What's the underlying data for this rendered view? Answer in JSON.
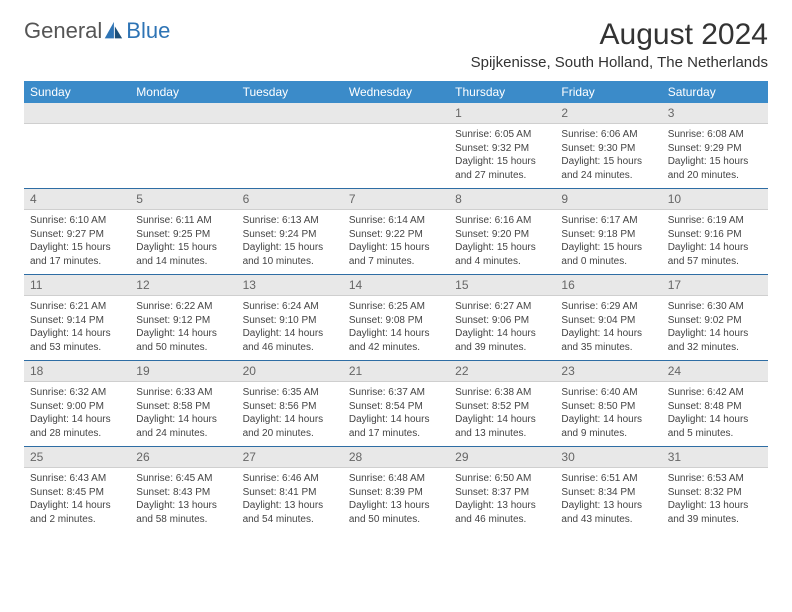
{
  "brand": {
    "part1": "General",
    "part2": "Blue"
  },
  "title": "August 2024",
  "location": "Spijkenisse, South Holland, The Netherlands",
  "colors": {
    "header_bg": "#3b8bc9",
    "rule": "#2e6da4",
    "daynum_bg": "#e8e8e8",
    "text": "#444444",
    "brand_blue": "#2e74b5"
  },
  "day_names": [
    "Sunday",
    "Monday",
    "Tuesday",
    "Wednesday",
    "Thursday",
    "Friday",
    "Saturday"
  ],
  "weeks": [
    {
      "nums": [
        "",
        "",
        "",
        "",
        "1",
        "2",
        "3"
      ],
      "cells": [
        {},
        {},
        {},
        {},
        {
          "sunrise": "Sunrise: 6:05 AM",
          "sunset": "Sunset: 9:32 PM",
          "day1": "Daylight: 15 hours",
          "day2": "and 27 minutes."
        },
        {
          "sunrise": "Sunrise: 6:06 AM",
          "sunset": "Sunset: 9:30 PM",
          "day1": "Daylight: 15 hours",
          "day2": "and 24 minutes."
        },
        {
          "sunrise": "Sunrise: 6:08 AM",
          "sunset": "Sunset: 9:29 PM",
          "day1": "Daylight: 15 hours",
          "day2": "and 20 minutes."
        }
      ]
    },
    {
      "nums": [
        "4",
        "5",
        "6",
        "7",
        "8",
        "9",
        "10"
      ],
      "cells": [
        {
          "sunrise": "Sunrise: 6:10 AM",
          "sunset": "Sunset: 9:27 PM",
          "day1": "Daylight: 15 hours",
          "day2": "and 17 minutes."
        },
        {
          "sunrise": "Sunrise: 6:11 AM",
          "sunset": "Sunset: 9:25 PM",
          "day1": "Daylight: 15 hours",
          "day2": "and 14 minutes."
        },
        {
          "sunrise": "Sunrise: 6:13 AM",
          "sunset": "Sunset: 9:24 PM",
          "day1": "Daylight: 15 hours",
          "day2": "and 10 minutes."
        },
        {
          "sunrise": "Sunrise: 6:14 AM",
          "sunset": "Sunset: 9:22 PM",
          "day1": "Daylight: 15 hours",
          "day2": "and 7 minutes."
        },
        {
          "sunrise": "Sunrise: 6:16 AM",
          "sunset": "Sunset: 9:20 PM",
          "day1": "Daylight: 15 hours",
          "day2": "and 4 minutes."
        },
        {
          "sunrise": "Sunrise: 6:17 AM",
          "sunset": "Sunset: 9:18 PM",
          "day1": "Daylight: 15 hours",
          "day2": "and 0 minutes."
        },
        {
          "sunrise": "Sunrise: 6:19 AM",
          "sunset": "Sunset: 9:16 PM",
          "day1": "Daylight: 14 hours",
          "day2": "and 57 minutes."
        }
      ]
    },
    {
      "nums": [
        "11",
        "12",
        "13",
        "14",
        "15",
        "16",
        "17"
      ],
      "cells": [
        {
          "sunrise": "Sunrise: 6:21 AM",
          "sunset": "Sunset: 9:14 PM",
          "day1": "Daylight: 14 hours",
          "day2": "and 53 minutes."
        },
        {
          "sunrise": "Sunrise: 6:22 AM",
          "sunset": "Sunset: 9:12 PM",
          "day1": "Daylight: 14 hours",
          "day2": "and 50 minutes."
        },
        {
          "sunrise": "Sunrise: 6:24 AM",
          "sunset": "Sunset: 9:10 PM",
          "day1": "Daylight: 14 hours",
          "day2": "and 46 minutes."
        },
        {
          "sunrise": "Sunrise: 6:25 AM",
          "sunset": "Sunset: 9:08 PM",
          "day1": "Daylight: 14 hours",
          "day2": "and 42 minutes."
        },
        {
          "sunrise": "Sunrise: 6:27 AM",
          "sunset": "Sunset: 9:06 PM",
          "day1": "Daylight: 14 hours",
          "day2": "and 39 minutes."
        },
        {
          "sunrise": "Sunrise: 6:29 AM",
          "sunset": "Sunset: 9:04 PM",
          "day1": "Daylight: 14 hours",
          "day2": "and 35 minutes."
        },
        {
          "sunrise": "Sunrise: 6:30 AM",
          "sunset": "Sunset: 9:02 PM",
          "day1": "Daylight: 14 hours",
          "day2": "and 32 minutes."
        }
      ]
    },
    {
      "nums": [
        "18",
        "19",
        "20",
        "21",
        "22",
        "23",
        "24"
      ],
      "cells": [
        {
          "sunrise": "Sunrise: 6:32 AM",
          "sunset": "Sunset: 9:00 PM",
          "day1": "Daylight: 14 hours",
          "day2": "and 28 minutes."
        },
        {
          "sunrise": "Sunrise: 6:33 AM",
          "sunset": "Sunset: 8:58 PM",
          "day1": "Daylight: 14 hours",
          "day2": "and 24 minutes."
        },
        {
          "sunrise": "Sunrise: 6:35 AM",
          "sunset": "Sunset: 8:56 PM",
          "day1": "Daylight: 14 hours",
          "day2": "and 20 minutes."
        },
        {
          "sunrise": "Sunrise: 6:37 AM",
          "sunset": "Sunset: 8:54 PM",
          "day1": "Daylight: 14 hours",
          "day2": "and 17 minutes."
        },
        {
          "sunrise": "Sunrise: 6:38 AM",
          "sunset": "Sunset: 8:52 PM",
          "day1": "Daylight: 14 hours",
          "day2": "and 13 minutes."
        },
        {
          "sunrise": "Sunrise: 6:40 AM",
          "sunset": "Sunset: 8:50 PM",
          "day1": "Daylight: 14 hours",
          "day2": "and 9 minutes."
        },
        {
          "sunrise": "Sunrise: 6:42 AM",
          "sunset": "Sunset: 8:48 PM",
          "day1": "Daylight: 14 hours",
          "day2": "and 5 minutes."
        }
      ]
    },
    {
      "nums": [
        "25",
        "26",
        "27",
        "28",
        "29",
        "30",
        "31"
      ],
      "cells": [
        {
          "sunrise": "Sunrise: 6:43 AM",
          "sunset": "Sunset: 8:45 PM",
          "day1": "Daylight: 14 hours",
          "day2": "and 2 minutes."
        },
        {
          "sunrise": "Sunrise: 6:45 AM",
          "sunset": "Sunset: 8:43 PM",
          "day1": "Daylight: 13 hours",
          "day2": "and 58 minutes."
        },
        {
          "sunrise": "Sunrise: 6:46 AM",
          "sunset": "Sunset: 8:41 PM",
          "day1": "Daylight: 13 hours",
          "day2": "and 54 minutes."
        },
        {
          "sunrise": "Sunrise: 6:48 AM",
          "sunset": "Sunset: 8:39 PM",
          "day1": "Daylight: 13 hours",
          "day2": "and 50 minutes."
        },
        {
          "sunrise": "Sunrise: 6:50 AM",
          "sunset": "Sunset: 8:37 PM",
          "day1": "Daylight: 13 hours",
          "day2": "and 46 minutes."
        },
        {
          "sunrise": "Sunrise: 6:51 AM",
          "sunset": "Sunset: 8:34 PM",
          "day1": "Daylight: 13 hours",
          "day2": "and 43 minutes."
        },
        {
          "sunrise": "Sunrise: 6:53 AM",
          "sunset": "Sunset: 8:32 PM",
          "day1": "Daylight: 13 hours",
          "day2": "and 39 minutes."
        }
      ]
    }
  ]
}
